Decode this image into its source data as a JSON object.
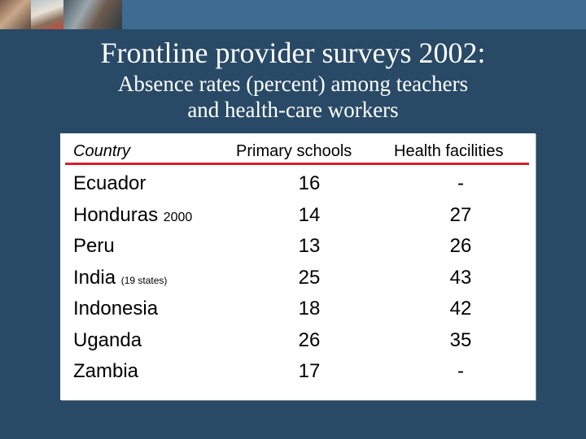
{
  "header": {
    "photos": [
      "photo-1",
      "photo-2",
      "photo-3"
    ]
  },
  "slide": {
    "title": "Frontline provider surveys 2002:",
    "subtitle_line1": "Absence rates (percent) among teachers",
    "subtitle_line2": "and health-care workers"
  },
  "table": {
    "columns": {
      "country": "Country",
      "primary": "Primary schools",
      "health": "Health facilities"
    },
    "rows": [
      {
        "country": "Ecuador",
        "note": "",
        "primary": "16",
        "health": "-"
      },
      {
        "country": "Honduras",
        "note": "2000",
        "primary": "14",
        "health": "27"
      },
      {
        "country": "Peru",
        "note": "",
        "primary": "13",
        "health": "26"
      },
      {
        "country": "India",
        "note": "(19 states)",
        "primary": "25",
        "health": "43"
      },
      {
        "country": "Indonesia",
        "note": "",
        "primary": "18",
        "health": "42"
      },
      {
        "country": "Uganda",
        "note": "",
        "primary": "26",
        "health": "35"
      },
      {
        "country": "Zambia",
        "note": "",
        "primary": "17",
        "health": "-"
      }
    ]
  },
  "colors": {
    "background": "#284a66",
    "topbar": "#3d6b91",
    "header_rule": "#d71f2b"
  }
}
